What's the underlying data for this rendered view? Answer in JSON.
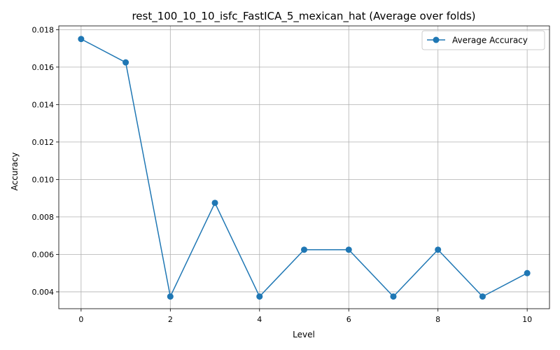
{
  "chart_data": {
    "type": "line",
    "title": "rest_100_10_10_isfc_FastICA_5_mexican_hat (Average over folds)",
    "xlabel": "Level",
    "ylabel": "Accuracy",
    "x": [
      0,
      1,
      2,
      3,
      4,
      5,
      6,
      7,
      8,
      9,
      10
    ],
    "series": [
      {
        "name": "Average Accuracy",
        "color": "#1f77b4",
        "marker": "circle",
        "values": [
          0.0175,
          0.01625,
          0.00375,
          0.00875,
          0.00375,
          0.00625,
          0.00625,
          0.00375,
          0.00625,
          0.00375,
          0.005
        ]
      }
    ],
    "xlim": [
      -0.5,
      10.5
    ],
    "ylim": [
      0.0031,
      0.0182
    ],
    "xticks": [
      0,
      2,
      4,
      6,
      8,
      10
    ],
    "xtick_labels": [
      "0",
      "2",
      "4",
      "6",
      "8",
      "10"
    ],
    "yticks": [
      0.004,
      0.006,
      0.008,
      0.01,
      0.012,
      0.014,
      0.016,
      0.018
    ],
    "ytick_labels": [
      "0.004",
      "0.006",
      "0.008",
      "0.010",
      "0.012",
      "0.014",
      "0.016",
      "0.018"
    ],
    "grid": true,
    "legend_position": "top-right"
  }
}
